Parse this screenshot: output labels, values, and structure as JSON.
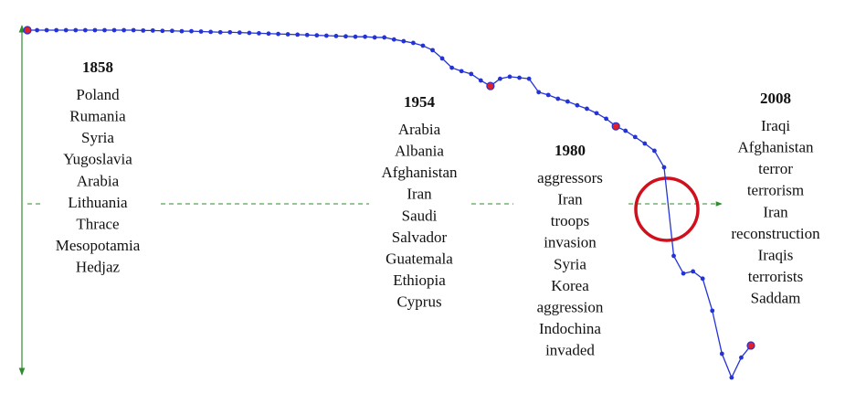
{
  "chart_data": {
    "type": "line",
    "x": [
      1858,
      1860,
      1862,
      1864,
      1866,
      1868,
      1870,
      1872,
      1874,
      1876,
      1878,
      1880,
      1882,
      1884,
      1886,
      1888,
      1890,
      1892,
      1894,
      1896,
      1898,
      1900,
      1902,
      1904,
      1906,
      1908,
      1910,
      1912,
      1914,
      1916,
      1918,
      1920,
      1922,
      1924,
      1926,
      1928,
      1930,
      1932,
      1934,
      1936,
      1938,
      1940,
      1942,
      1944,
      1946,
      1948,
      1950,
      1952,
      1954,
      1956,
      1958,
      1960,
      1962,
      1964,
      1966,
      1968,
      1970,
      1972,
      1974,
      1976,
      1978,
      1980,
      1982,
      1984,
      1986,
      1988,
      1990,
      1992,
      1994,
      1996,
      1998,
      2000,
      2002,
      2004,
      2006,
      2008
    ],
    "series": [
      {
        "color": "#2433d6",
        "values": [
          100,
          100,
          100,
          100,
          100,
          100,
          100,
          100,
          100,
          100,
          100,
          100,
          99.9,
          99.9,
          99.8,
          99.8,
          99.7,
          99.7,
          99.6,
          99.5,
          99.4,
          99.4,
          99.3,
          99.2,
          99.1,
          99.0,
          98.9,
          98.8,
          98.7,
          98.6,
          98.5,
          98.4,
          98.3,
          98.2,
          98.1,
          98.1,
          97.9,
          97.9,
          97.3,
          96.8,
          96.3,
          95.5,
          94.2,
          91.8,
          89.1,
          88.1,
          87.3,
          85.4,
          83.8,
          85.9,
          86.5,
          86.2,
          85.9,
          82.0,
          81.2,
          80.1,
          79.3,
          78.2,
          77.2,
          75.9,
          74.3,
          72.1,
          70.8,
          69.0,
          67.1,
          65.0,
          60.2,
          34.5,
          29.4,
          30.0,
          27.9,
          18.6,
          6.1,
          -0.8,
          5.0,
          8.5
        ]
      }
    ],
    "xlim": [
      1858,
      2008
    ],
    "ylim": [
      0,
      100
    ],
    "highlight_color": "#e0202a",
    "annotations": [
      {
        "year": 1858,
        "words": [
          "Poland",
          "Rumania",
          "Syria",
          "Yugoslavia",
          "Arabia",
          "Lithuania",
          "Thrace",
          "Mesopotamia",
          "Hedjaz"
        ]
      },
      {
        "year": 1954,
        "words": [
          "Arabia",
          "Albania",
          "Afghanistan",
          "Iran",
          "Saudi",
          "Salvador",
          "Guatemala",
          "Ethiopia",
          "Cyprus"
        ]
      },
      {
        "year": 1980,
        "words": [
          "aggressors",
          "Iran",
          "troops",
          "invasion",
          "Syria",
          "Korea",
          "aggression",
          "Indochina",
          "invaded"
        ]
      },
      {
        "year": 2008,
        "words": [
          "Iraqi",
          "Afghanistan",
          "terror",
          "terrorism",
          "Iran",
          "reconstruction",
          "Iraqis",
          "terrorists",
          "Saddam"
        ]
      }
    ]
  }
}
